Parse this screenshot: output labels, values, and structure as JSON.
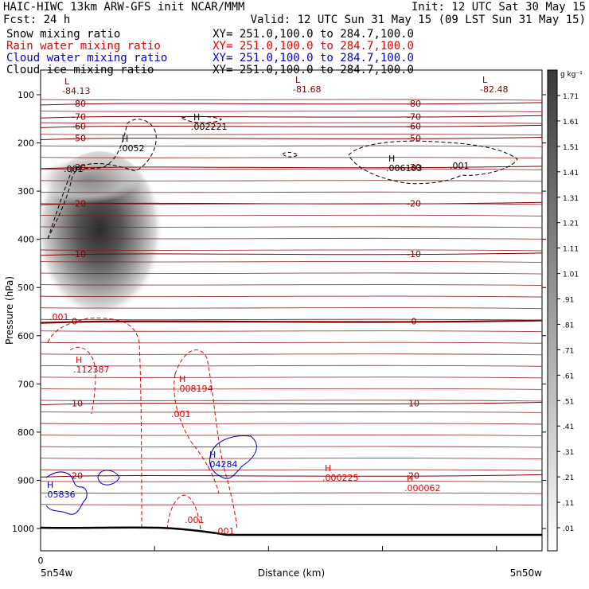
{
  "header": {
    "line1_left": "HAIC-HIWC 13km ARW-GFS init   NCAR/MMM",
    "line1_right": "Init: 12 UTC Sat 30 May 15",
    "line2_left": "Fcst:   24 h",
    "line2_right": "Valid: 12 UTC Sun 31 May 15 (09 LST Sun 31 May 15)"
  },
  "fields": [
    {
      "name": "Snow mixing ratio",
      "xy": "XY= 251.0,100.0 to 284.7,100.0",
      "color": "#000000"
    },
    {
      "name": "Rain water mixing ratio",
      "xy": "XY= 251.0,100.0 to 284.7,100.0",
      "color": "#e00000"
    },
    {
      "name": "Cloud water mixing ratio",
      "xy": "XY= 251.0,100.0 to 284.7,100.0",
      "color": "#0000cc"
    },
    {
      "name": "Cloud ice mixing ratio",
      "xy": "XY= 251.0,100.0 to 284.7,100.0",
      "color": "#000000"
    }
  ],
  "colorbar": {
    "unit": "g kg⁻¹",
    "labels": [
      "1.71",
      "1.61",
      "1.51",
      "1.41",
      "1.31",
      "1.21",
      "1.11",
      "1.01",
      ".91",
      ".81",
      ".71",
      ".61",
      ".51",
      ".41",
      ".31",
      ".21",
      ".11",
      ".01"
    ]
  },
  "chart_data": {
    "type": "contour-cross-section",
    "xlabel": "Distance (km)",
    "ylabel": "Pressure (hPa)",
    "x_tick_labels": [
      "0"
    ],
    "x_endpoints": {
      "left": "5n54w",
      "right": "5n50w"
    },
    "y_ticks": [
      100,
      200,
      300,
      400,
      500,
      600,
      700,
      800,
      900,
      1000
    ],
    "y_range": [
      1030,
      50
    ],
    "temperature_contours": [
      {
        "label": "-80",
        "p": 118
      },
      {
        "label": "-70",
        "p": 145
      },
      {
        "label": "-60",
        "p": 165
      },
      {
        "label": "-50",
        "p": 190
      },
      {
        "label": "-30",
        "p": 250
      },
      {
        "label": "-20",
        "p": 325
      },
      {
        "label": "-10",
        "p": 430
      },
      {
        "label": "0",
        "p": 570
      },
      {
        "label": "10",
        "p": 740
      },
      {
        "label": "20",
        "p": 890
      }
    ],
    "annotations": [
      {
        "mark": "L",
        "value": "-84.13",
        "color": "#800000"
      },
      {
        "mark": "L",
        "value": "-81.68",
        "color": "#800000"
      },
      {
        "mark": "L",
        "value": "-82.48",
        "color": "#800000"
      },
      {
        "mark": "H",
        "value": ".002221",
        "color": "#000000"
      },
      {
        "mark": "H",
        "value": ".0052",
        "color": "#000000"
      },
      {
        "mark": "H",
        "value": ".006103",
        "color": "#000000"
      },
      {
        "mark": "",
        "value": ".001",
        "color": "#000000"
      },
      {
        "mark": "",
        "value": ".001",
        "color": "#000000"
      },
      {
        "mark": "H",
        "value": ".112387",
        "color": "#e00000"
      },
      {
        "mark": "H",
        "value": ".008194",
        "color": "#e00000"
      },
      {
        "mark": "",
        "value": ".001",
        "color": "#e00000"
      },
      {
        "mark": "",
        "value": ".001",
        "color": "#e00000"
      },
      {
        "mark": "",
        "value": ".001",
        "color": "#e00000"
      },
      {
        "mark": "",
        "value": ".001",
        "color": "#e00000"
      },
      {
        "mark": "H",
        "value": ".000225",
        "color": "#e00000"
      },
      {
        "mark": "H",
        "value": ".000062",
        "color": "#e00000"
      },
      {
        "mark": "H",
        "value": ".04284",
        "color": "#0000cc"
      },
      {
        "mark": "H",
        "value": ".05836",
        "color": "#0000cc"
      }
    ],
    "snow_max_region": "gray shaded core near 300-500 hPa",
    "colors": {
      "temperature": "#800000",
      "rain": "#e00000",
      "cloud_water": "#0000cc",
      "ice": "#000000"
    }
  }
}
